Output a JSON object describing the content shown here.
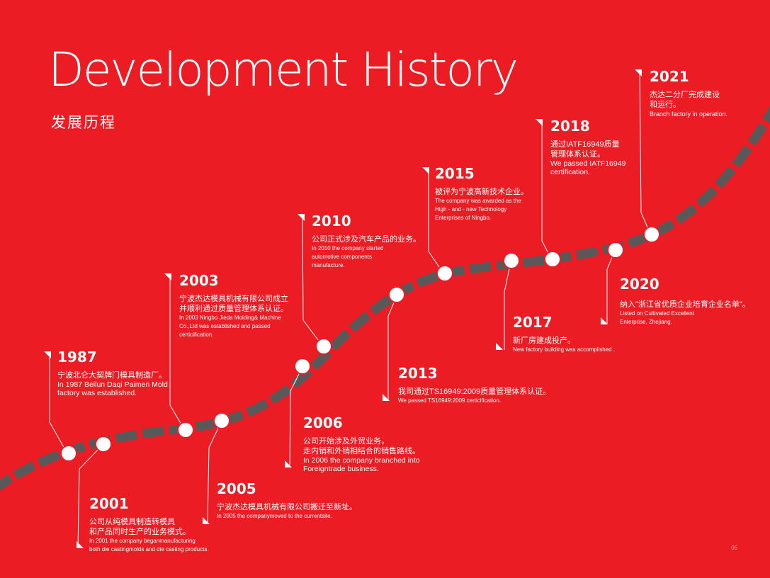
{
  "title": "Development History",
  "subtitle": "发展历程",
  "page_number": "06",
  "events": [
    {
      "year": "1987",
      "cn": "宁波北仑大契牌门模具制造厂。",
      "en": [
        "In 1987  Beilun Daqi Paimen Mold",
        "factory was established."
      ]
    },
    {
      "year": "2001",
      "cn": "公司从纯模具制造转模具\n和产品同时生产的业务模式。",
      "en": [
        "In 2001 the company beganmanufacturing",
        "both die castingmolds and die casting products."
      ]
    },
    {
      "year": "2003",
      "cn": "宁波杰达模具机械有限公司成立\n并顺利通过质量管理体系认证。",
      "en": [
        "In 2003 Ningbo Jieda Molding& Machine",
        "Co.,Ltd was established and passed",
        "certicification."
      ]
    },
    {
      "year": "2005",
      "cn": "宁波杰达模具机械有限公司搬迁至新址。",
      "en": [
        "In 2005 the companymoved to the currentsite."
      ]
    },
    {
      "year": "2006",
      "cn": "公司开始涉及外贸业务，\n走内销和外销相结合的销售路线。",
      "en": [
        "In 2006 the company branched into",
        "Foreigntrade business."
      ]
    },
    {
      "year": "2010",
      "cn": "公司正式涉及汽车产品的业务。",
      "en": [
        "In 2010 the company started",
        "automotive components",
        "manufacture."
      ]
    },
    {
      "year": "2013",
      "cn": "我司通过TS16949:2009质量管理体系认证。",
      "en": [
        "We passed TS16949:2009  certicification."
      ]
    },
    {
      "year": "2015",
      "cn": "被评为宁波高新技术企业。",
      "en": [
        "The company was awarded as the",
        "High - and - new Technology",
        " Enterprises of Ningbo."
      ]
    },
    {
      "year": "2017",
      "cn": "新厂房建成投产。",
      "en": [
        "New factory building  was accomplished ."
      ]
    },
    {
      "year": "2018",
      "cn": "通过IATF16949质量\n管理体系认证。",
      "en": [
        "We passed IATF16949",
        "certification."
      ]
    },
    {
      "year": "2020",
      "cn": "纳入\"浙江省优质企业培育企业名单\"。",
      "en": [
        "Listed on Cultivated Excellent",
        "Enterprise, Zhejiang."
      ]
    },
    {
      "year": "2021",
      "cn": "杰达二分厂完成建设\n和运行。",
      "en": [
        "Branch factory in operation."
      ]
    }
  ],
  "colors": {
    "background": "#ec1c24",
    "road": "#595959",
    "text": "#ffffff"
  }
}
